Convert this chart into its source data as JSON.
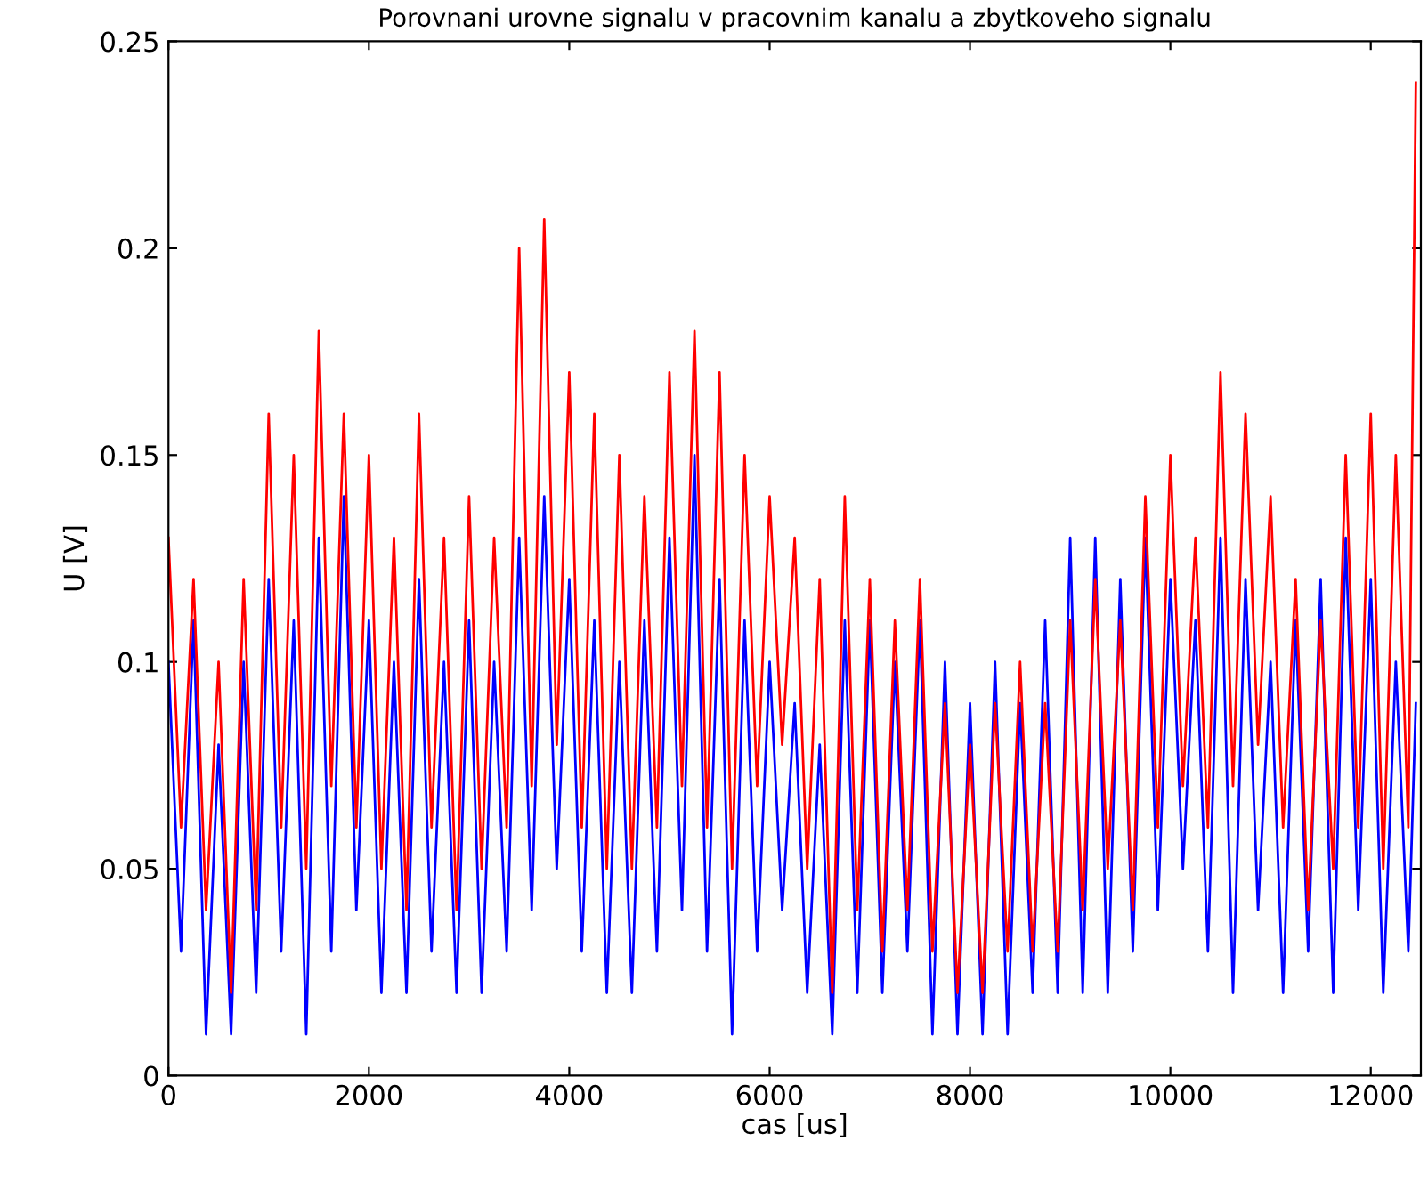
{
  "chart_data": {
    "type": "line",
    "title": "Porovnani urovne signalu v pracovnim kanalu a zbytkoveho signalu",
    "xlabel": "cas [us]",
    "ylabel": "U [V]",
    "x": [
      0,
      125,
      250,
      375,
      500,
      625,
      750,
      875,
      1000,
      1125,
      1250,
      1375,
      1500,
      1625,
      1750,
      1875,
      2000,
      2125,
      2250,
      2375,
      2500,
      2625,
      2750,
      2875,
      3000,
      3125,
      3250,
      3375,
      3500,
      3625,
      3750,
      3875,
      4000,
      4125,
      4250,
      4375,
      4500,
      4625,
      4750,
      4875,
      5000,
      5125,
      5250,
      5375,
      5500,
      5625,
      5750,
      5875,
      6000,
      6125,
      6250,
      6375,
      6500,
      6625,
      6750,
      6875,
      7000,
      7125,
      7250,
      7375,
      7500,
      7625,
      7750,
      7875,
      8000,
      8125,
      8250,
      8375,
      8500,
      8625,
      8750,
      8875,
      9000,
      9125,
      9250,
      9375,
      9500,
      9625,
      9750,
      9875,
      10000,
      10125,
      10250,
      10375,
      10500,
      10625,
      10750,
      10875,
      11000,
      11125,
      11250,
      11375,
      11500,
      11625,
      11750,
      11875,
      12000,
      12125,
      12250,
      12375,
      12450
    ],
    "series": [
      {
        "color": "#0000ff",
        "values": [
          0.1,
          0.03,
          0.11,
          0.01,
          0.08,
          0.01,
          0.1,
          0.02,
          0.12,
          0.03,
          0.11,
          0.01,
          0.13,
          0.03,
          0.14,
          0.04,
          0.11,
          0.02,
          0.1,
          0.02,
          0.12,
          0.03,
          0.1,
          0.02,
          0.11,
          0.02,
          0.1,
          0.03,
          0.13,
          0.04,
          0.14,
          0.05,
          0.12,
          0.03,
          0.11,
          0.02,
          0.1,
          0.02,
          0.11,
          0.03,
          0.13,
          0.04,
          0.15,
          0.03,
          0.12,
          0.01,
          0.11,
          0.03,
          0.1,
          0.04,
          0.09,
          0.02,
          0.08,
          0.01,
          0.11,
          0.02,
          0.11,
          0.02,
          0.1,
          0.03,
          0.11,
          0.01,
          0.1,
          0.01,
          0.09,
          0.01,
          0.1,
          0.01,
          0.09,
          0.02,
          0.11,
          0.02,
          0.13,
          0.02,
          0.13,
          0.02,
          0.12,
          0.03,
          0.13,
          0.04,
          0.12,
          0.05,
          0.11,
          0.03,
          0.13,
          0.02,
          0.12,
          0.04,
          0.1,
          0.02,
          0.11,
          0.03,
          0.12,
          0.02,
          0.13,
          0.04,
          0.12,
          0.02,
          0.1,
          0.03,
          0.09
        ]
      },
      {
        "color": "#ff0000",
        "values": [
          0.13,
          0.06,
          0.12,
          0.04,
          0.1,
          0.02,
          0.12,
          0.04,
          0.16,
          0.06,
          0.15,
          0.05,
          0.18,
          0.07,
          0.16,
          0.06,
          0.15,
          0.05,
          0.13,
          0.04,
          0.16,
          0.06,
          0.13,
          0.04,
          0.14,
          0.05,
          0.13,
          0.06,
          0.2,
          0.07,
          0.207,
          0.08,
          0.17,
          0.06,
          0.16,
          0.05,
          0.15,
          0.05,
          0.14,
          0.06,
          0.17,
          0.07,
          0.18,
          0.06,
          0.17,
          0.05,
          0.15,
          0.07,
          0.14,
          0.08,
          0.13,
          0.05,
          0.12,
          0.02,
          0.14,
          0.04,
          0.12,
          0.03,
          0.11,
          0.04,
          0.12,
          0.03,
          0.09,
          0.02,
          0.08,
          0.02,
          0.09,
          0.03,
          0.1,
          0.03,
          0.09,
          0.03,
          0.11,
          0.04,
          0.12,
          0.05,
          0.11,
          0.04,
          0.14,
          0.06,
          0.15,
          0.07,
          0.13,
          0.06,
          0.17,
          0.07,
          0.16,
          0.08,
          0.14,
          0.06,
          0.12,
          0.04,
          0.11,
          0.05,
          0.15,
          0.06,
          0.16,
          0.05,
          0.15,
          0.06,
          0.24
        ]
      }
    ],
    "xlim": [
      0,
      12500
    ],
    "ylim": [
      0,
      0.25
    ],
    "xticks": [
      0,
      2000,
      4000,
      6000,
      8000,
      10000,
      12000
    ],
    "yticks": [
      0,
      0.05,
      0.1,
      0.15,
      0.2,
      0.25
    ],
    "grid": false,
    "legend": false
  }
}
